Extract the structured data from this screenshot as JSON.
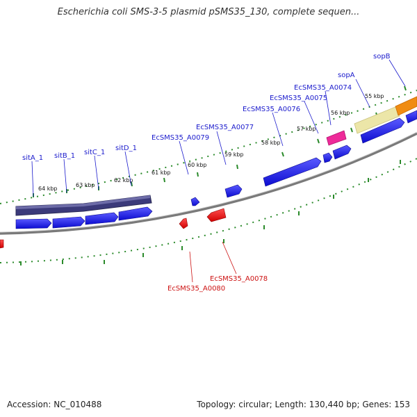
{
  "title": "Escherichia coli SMS-3-5 plasmid pSMS35_130, complete sequen...",
  "footer": {
    "accession": "Accession: NC_010488",
    "summary": "Topology: circular; Length: 130,440 bp; Genes: 153"
  },
  "ticks": [
    "64 kbp",
    "63 kbp",
    "62 kbp",
    "61 kbp",
    "60 kbp",
    "59 kbp",
    "58 kbp",
    "57 kbp",
    "56 kbp",
    "55 kbp"
  ],
  "forward_labels": [
    "sitA_1",
    "sitB_1",
    "sitC_1",
    "sitD_1",
    "EcSMS35_A0079",
    "EcSMS35_A0077",
    "EcSMS35_A0076",
    "EcSMS35_A0075",
    "EcSMS35_A0074",
    "sopA",
    "sopB"
  ],
  "reverse_labels": [
    "EcSMS35_A0080",
    "EcSMS35_A0078"
  ],
  "colors": {
    "forward_cds": "#1a1aee",
    "reverse_cds": "#ee1111",
    "operon": "#3b3a7a",
    "sop_a": "#ece6a8",
    "sop_b": "#f08c12",
    "pink": "#ee2a99",
    "backbone": "#8a8a8a",
    "tick": "#2a8a2a",
    "label_forward": "#1a1acc",
    "label_reverse": "#cc1111"
  }
}
